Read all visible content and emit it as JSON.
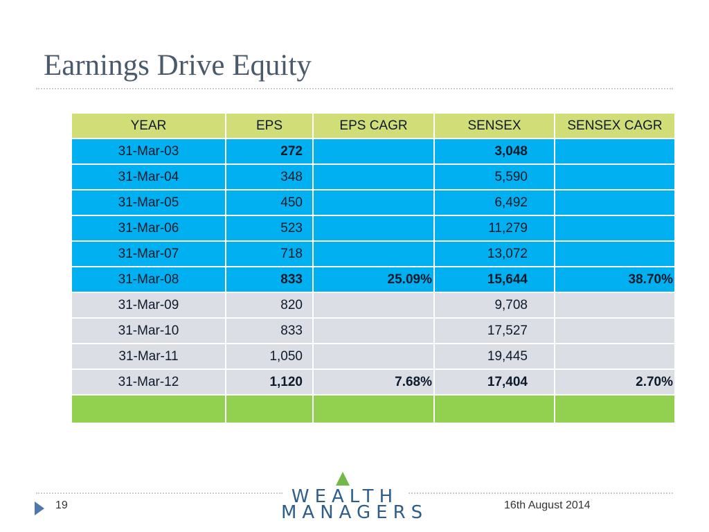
{
  "slide": {
    "title": "Earnings Drive Equity",
    "page_number": "19",
    "date": "16th August 2014"
  },
  "logo": {
    "line1": "WEALTH",
    "line2": "MANAGERS"
  },
  "table": {
    "headers": [
      "YEAR",
      "EPS",
      "EPS CAGR",
      "SENSEX",
      "SENSEX CAGR"
    ],
    "rows": [
      {
        "year": "31-Mar-03",
        "eps": "272",
        "eps_cagr": "",
        "sensex": "3,048",
        "sensex_cagr": ""
      },
      {
        "year": "31-Mar-04",
        "eps": "348",
        "eps_cagr": "",
        "sensex": "5,590",
        "sensex_cagr": ""
      },
      {
        "year": "31-Mar-05",
        "eps": "450",
        "eps_cagr": "",
        "sensex": "6,492",
        "sensex_cagr": ""
      },
      {
        "year": "31-Mar-06",
        "eps": "523",
        "eps_cagr": "",
        "sensex": "11,279",
        "sensex_cagr": ""
      },
      {
        "year": "31-Mar-07",
        "eps": "718",
        "eps_cagr": "",
        "sensex": "13,072",
        "sensex_cagr": ""
      },
      {
        "year": "31-Mar-08",
        "eps": "833",
        "eps_cagr": "25.09%",
        "sensex": "15,644",
        "sensex_cagr": "38.70%"
      },
      {
        "year": "31-Mar-09",
        "eps": "820",
        "eps_cagr": "",
        "sensex": "9,708",
        "sensex_cagr": ""
      },
      {
        "year": "31-Mar-10",
        "eps": "833",
        "eps_cagr": "",
        "sensex": "17,527",
        "sensex_cagr": ""
      },
      {
        "year": "31-Mar-11",
        "eps": "1,050",
        "eps_cagr": "",
        "sensex": "19,445",
        "sensex_cagr": ""
      },
      {
        "year": "31-Mar-12",
        "eps": "1,120",
        "eps_cagr": "7.68%",
        "sensex": "17,404",
        "sensex_cagr": "2.70%"
      }
    ]
  },
  "colors": {
    "header_row": "#d1de77",
    "period1_rows": "#00b0f0",
    "period2_rows": "#dcdee6",
    "footer_row": "#92d050",
    "title_text": "#4a5a6a",
    "logo_text": "#2f5d8a",
    "logo_triangle": "#74b84a"
  },
  "icons": {
    "footer_bullet": "triangle-right-icon",
    "logo_mark": "triangle-up-icon"
  }
}
